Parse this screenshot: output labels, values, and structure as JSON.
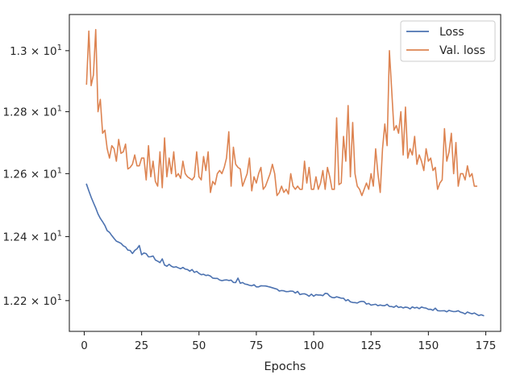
{
  "chart_data": {
    "type": "line",
    "title": "",
    "xlabel": "Epochs",
    "ylabel": "",
    "yscale": "log",
    "xlim": [
      -6.5,
      181.5
    ],
    "ylim": [
      12.105,
      13.12
    ],
    "x_ticks": [
      0,
      25,
      50,
      75,
      100,
      125,
      150,
      175
    ],
    "y_ticks": [
      {
        "value": 12.2,
        "label": "1.22 × 10¹"
      },
      {
        "value": 12.4,
        "label": "1.24 × 10¹"
      },
      {
        "value": 12.6,
        "label": "1.26 × 10¹"
      },
      {
        "value": 12.8,
        "label": "1.28 × 10¹"
      },
      {
        "value": 13.0,
        "label": "1.3 × 10¹"
      }
    ],
    "grid": false,
    "legend_position": "top-right",
    "series": [
      {
        "name": "Loss",
        "color": "#4c72b0",
        "keypoints": [
          [
            1,
            12.566
          ],
          [
            2,
            12.545
          ],
          [
            3,
            12.525
          ],
          [
            5,
            12.49
          ],
          [
            7,
            12.46
          ],
          [
            9,
            12.435
          ],
          [
            11,
            12.41
          ],
          [
            13,
            12.395
          ],
          [
            15,
            12.38
          ],
          [
            17,
            12.375
          ],
          [
            19,
            12.36
          ],
          [
            21,
            12.35
          ],
          [
            24,
            12.368
          ],
          [
            25,
            12.347
          ],
          [
            30,
            12.335
          ],
          [
            33,
            12.318
          ],
          [
            36,
            12.31
          ],
          [
            40,
            12.305
          ],
          [
            45,
            12.298
          ],
          [
            50,
            12.285
          ],
          [
            55,
            12.275
          ],
          [
            60,
            12.266
          ],
          [
            65,
            12.258
          ],
          [
            70,
            12.252
          ],
          [
            75,
            12.246
          ],
          [
            80,
            12.24
          ],
          [
            85,
            12.234
          ],
          [
            90,
            12.228
          ],
          [
            95,
            12.222
          ],
          [
            100,
            12.214
          ],
          [
            105,
            12.22
          ],
          [
            110,
            12.21
          ],
          [
            115,
            12.2
          ],
          [
            120,
            12.196
          ],
          [
            125,
            12.19
          ],
          [
            130,
            12.187
          ],
          [
            135,
            12.184
          ],
          [
            140,
            12.18
          ],
          [
            145,
            12.177
          ],
          [
            150,
            12.175
          ],
          [
            155,
            12.172
          ],
          [
            160,
            12.168
          ],
          [
            165,
            12.163
          ],
          [
            170,
            12.158
          ],
          [
            174,
            12.15
          ]
        ],
        "spikes": {
          "24": 12.372,
          "34": 12.33,
          "67": 12.27
        }
      },
      {
        "name": "Val. loss",
        "color": "#dd8452",
        "values": [
          12.89,
          13.065,
          12.885,
          12.92,
          13.07,
          12.8,
          12.84,
          12.73,
          12.74,
          12.68,
          12.65,
          12.69,
          12.68,
          12.64,
          12.71,
          12.665,
          12.67,
          12.695,
          12.615,
          12.62,
          12.63,
          12.66,
          12.625,
          12.625,
          12.65,
          12.65,
          12.58,
          12.69,
          12.59,
          12.64,
          12.575,
          12.56,
          12.67,
          12.555,
          12.715,
          12.59,
          12.65,
          12.6,
          12.67,
          12.59,
          12.6,
          12.585,
          12.64,
          12.6,
          12.59,
          12.585,
          12.58,
          12.59,
          12.67,
          12.59,
          12.58,
          12.655,
          12.61,
          12.67,
          12.54,
          12.575,
          12.565,
          12.6,
          12.61,
          12.6,
          12.62,
          12.65,
          12.735,
          12.56,
          12.685,
          12.63,
          12.62,
          12.615,
          12.56,
          12.58,
          12.6,
          12.65,
          12.545,
          12.59,
          12.57,
          12.6,
          12.62,
          12.55,
          12.56,
          12.58,
          12.6,
          12.63,
          12.6,
          12.53,
          12.54,
          12.56,
          12.54,
          12.55,
          12.535,
          12.6,
          12.56,
          12.55,
          12.56,
          12.55,
          12.55,
          12.64,
          12.57,
          12.62,
          12.55,
          12.55,
          12.59,
          12.55,
          12.57,
          12.61,
          12.55,
          12.62,
          12.59,
          12.55,
          12.55,
          12.78,
          12.565,
          12.57,
          12.72,
          12.64,
          12.82,
          12.59,
          12.765,
          12.6,
          12.56,
          12.55,
          12.53,
          12.55,
          12.57,
          12.55,
          12.6,
          12.56,
          12.68,
          12.6,
          12.54,
          12.68,
          12.76,
          12.69,
          13.0,
          12.87,
          12.74,
          12.755,
          12.73,
          12.8,
          12.66,
          12.815,
          12.65,
          12.68,
          12.66,
          12.72,
          12.63,
          12.66,
          12.64,
          12.61,
          12.68,
          12.64,
          12.65,
          12.61,
          12.62,
          12.55,
          12.57,
          12.58,
          12.745,
          12.64,
          12.67,
          12.73,
          12.6,
          12.7,
          12.56,
          12.6,
          12.6,
          12.58,
          12.625,
          12.59,
          12.6,
          12.56,
          12.56
        ]
      }
    ]
  }
}
